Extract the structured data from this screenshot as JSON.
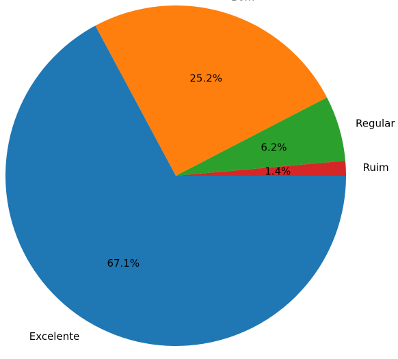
{
  "chart_data": {
    "type": "pie",
    "title": "",
    "start_angle_deg": 0,
    "direction": "counterclockwise",
    "slices": [
      {
        "label": "Ruim",
        "value": 1.4,
        "pct_label": "1.4%",
        "color": "#d62728"
      },
      {
        "label": "Regular",
        "value": 6.2,
        "pct_label": "6.2%",
        "color": "#2ca02c"
      },
      {
        "label": "Bom",
        "value": 25.2,
        "pct_label": "25.2%",
        "color": "#ff7f0e"
      },
      {
        "label": "Excelente",
        "value": 67.1,
        "pct_label": "67.1%",
        "color": "#1f77b4"
      }
    ]
  }
}
